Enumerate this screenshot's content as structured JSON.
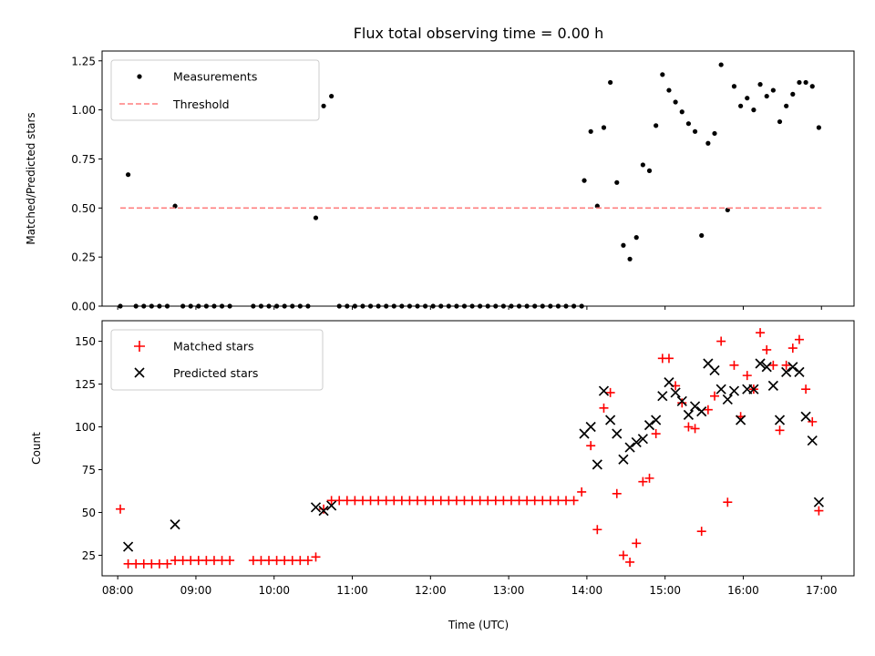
{
  "chart_data": [
    {
      "type": "scatter",
      "title": "Flux total observing time = 0.00 h",
      "xlabel": "",
      "ylabel": "Matched/Predicted stars",
      "xlim": [
        "07:48",
        "17:25"
      ],
      "ylim": [
        0,
        1.3
      ],
      "yticks": [
        "0.00",
        "0.25",
        "0.50",
        "0.75",
        "1.00",
        "1.25"
      ],
      "grid": false,
      "legend_position": "top-left",
      "series": [
        {
          "name": "Measurements",
          "marker": "dot",
          "color": "#000000",
          "points": [
            [
              "08:02",
              0
            ],
            [
              "08:08",
              0.67
            ],
            [
              "08:14",
              0
            ],
            [
              "08:20",
              0
            ],
            [
              "08:26",
              0
            ],
            [
              "08:32",
              0
            ],
            [
              "08:38",
              0
            ],
            [
              "08:44",
              0.51
            ],
            [
              "08:50",
              0
            ],
            [
              "08:56",
              0
            ],
            [
              "09:02",
              0
            ],
            [
              "09:08",
              0
            ],
            [
              "09:14",
              0
            ],
            [
              "09:20",
              0
            ],
            [
              "09:26",
              0
            ],
            [
              "09:44",
              0
            ],
            [
              "09:50",
              0
            ],
            [
              "09:56",
              0
            ],
            [
              "10:02",
              0
            ],
            [
              "10:08",
              0
            ],
            [
              "10:14",
              0
            ],
            [
              "10:20",
              0
            ],
            [
              "10:26",
              0
            ],
            [
              "10:32",
              0.45
            ],
            [
              "10:38",
              1.02
            ],
            [
              "10:44",
              1.07
            ],
            [
              "10:50",
              0
            ],
            [
              "10:56",
              0
            ],
            [
              "11:02",
              0
            ],
            [
              "11:08",
              0
            ],
            [
              "11:14",
              0
            ],
            [
              "11:20",
              0
            ],
            [
              "11:26",
              0
            ],
            [
              "11:32",
              0
            ],
            [
              "11:38",
              0
            ],
            [
              "11:44",
              0
            ],
            [
              "11:50",
              0
            ],
            [
              "11:56",
              0
            ],
            [
              "12:02",
              0
            ],
            [
              "12:08",
              0
            ],
            [
              "12:14",
              0
            ],
            [
              "12:20",
              0
            ],
            [
              "12:26",
              0
            ],
            [
              "12:32",
              0
            ],
            [
              "12:38",
              0
            ],
            [
              "12:44",
              0
            ],
            [
              "12:50",
              0
            ],
            [
              "12:56",
              0
            ],
            [
              "13:02",
              0
            ],
            [
              "13:08",
              0
            ],
            [
              "13:14",
              0
            ],
            [
              "13:20",
              0
            ],
            [
              "13:26",
              0
            ],
            [
              "13:32",
              0
            ],
            [
              "13:38",
              0
            ],
            [
              "13:44",
              0
            ],
            [
              "13:50",
              0
            ],
            [
              "13:56",
              0
            ],
            [
              "13:58",
              0.64
            ],
            [
              "14:03",
              0.89
            ],
            [
              "14:08",
              0.51
            ],
            [
              "14:13",
              0.91
            ],
            [
              "14:18",
              1.14
            ],
            [
              "14:23",
              0.63
            ],
            [
              "14:28",
              0.31
            ],
            [
              "14:33",
              0.24
            ],
            [
              "14:38",
              0.35
            ],
            [
              "14:43",
              0.72
            ],
            [
              "14:48",
              0.69
            ],
            [
              "14:53",
              0.92
            ],
            [
              "14:58",
              1.18
            ],
            [
              "15:03",
              1.1
            ],
            [
              "15:08",
              1.04
            ],
            [
              "15:13",
              0.99
            ],
            [
              "15:18",
              0.93
            ],
            [
              "15:23",
              0.89
            ],
            [
              "15:28",
              0.36
            ],
            [
              "15:33",
              0.83
            ],
            [
              "15:38",
              0.88
            ],
            [
              "15:43",
              1.23
            ],
            [
              "15:48",
              0.49
            ],
            [
              "15:53",
              1.12
            ],
            [
              "15:58",
              1.02
            ],
            [
              "16:03",
              1.06
            ],
            [
              "16:08",
              1.0
            ],
            [
              "16:13",
              1.13
            ],
            [
              "16:18",
              1.07
            ],
            [
              "16:23",
              1.1
            ],
            [
              "16:28",
              0.94
            ],
            [
              "16:33",
              1.02
            ],
            [
              "16:38",
              1.08
            ],
            [
              "16:43",
              1.14
            ],
            [
              "16:48",
              1.14
            ],
            [
              "16:53",
              1.12
            ],
            [
              "16:58",
              0.91
            ]
          ]
        },
        {
          "name": "Threshold",
          "marker": "dashed-line",
          "color": "#ff7f7f",
          "points": [
            [
              "08:02",
              0.5
            ],
            [
              "17:00",
              0.5
            ]
          ]
        }
      ]
    },
    {
      "type": "scatter",
      "title": "",
      "xlabel": "Time (UTC)",
      "ylabel": "Count",
      "xlim": [
        "07:48",
        "17:25"
      ],
      "ylim": [
        13,
        162
      ],
      "yticks": [
        "25",
        "50",
        "75",
        "100",
        "125",
        "150"
      ],
      "xticks": [
        "08:00",
        "09:00",
        "10:00",
        "11:00",
        "12:00",
        "13:00",
        "14:00",
        "15:00",
        "16:00",
        "17:00"
      ],
      "grid": false,
      "legend_position": "top-left",
      "series": [
        {
          "name": "Matched stars",
          "marker": "plus",
          "color": "#ff0000",
          "points": [
            [
              "08:02",
              52
            ],
            [
              "08:08",
              20
            ],
            [
              "08:14",
              20
            ],
            [
              "08:20",
              20
            ],
            [
              "08:26",
              20
            ],
            [
              "08:32",
              20
            ],
            [
              "08:38",
              20
            ],
            [
              "08:44",
              22
            ],
            [
              "08:50",
              22
            ],
            [
              "08:56",
              22
            ],
            [
              "09:02",
              22
            ],
            [
              "09:08",
              22
            ],
            [
              "09:14",
              22
            ],
            [
              "09:20",
              22
            ],
            [
              "09:26",
              22
            ],
            [
              "09:44",
              22
            ],
            [
              "09:50",
              22
            ],
            [
              "09:56",
              22
            ],
            [
              "10:02",
              22
            ],
            [
              "10:08",
              22
            ],
            [
              "10:14",
              22
            ],
            [
              "10:20",
              22
            ],
            [
              "10:26",
              22
            ],
            [
              "10:32",
              24
            ],
            [
              "10:38",
              52
            ],
            [
              "10:44",
              57
            ],
            [
              "10:50",
              57
            ],
            [
              "10:56",
              57
            ],
            [
              "11:02",
              57
            ],
            [
              "11:08",
              57
            ],
            [
              "11:14",
              57
            ],
            [
              "11:20",
              57
            ],
            [
              "11:26",
              57
            ],
            [
              "11:32",
              57
            ],
            [
              "11:38",
              57
            ],
            [
              "11:44",
              57
            ],
            [
              "11:50",
              57
            ],
            [
              "11:56",
              57
            ],
            [
              "12:02",
              57
            ],
            [
              "12:08",
              57
            ],
            [
              "12:14",
              57
            ],
            [
              "12:20",
              57
            ],
            [
              "12:26",
              57
            ],
            [
              "12:32",
              57
            ],
            [
              "12:38",
              57
            ],
            [
              "12:44",
              57
            ],
            [
              "12:50",
              57
            ],
            [
              "12:56",
              57
            ],
            [
              "13:02",
              57
            ],
            [
              "13:08",
              57
            ],
            [
              "13:14",
              57
            ],
            [
              "13:20",
              57
            ],
            [
              "13:26",
              57
            ],
            [
              "13:32",
              57
            ],
            [
              "13:38",
              57
            ],
            [
              "13:44",
              57
            ],
            [
              "13:50",
              57
            ],
            [
              "13:56",
              62
            ],
            [
              "14:03",
              89
            ],
            [
              "14:08",
              40
            ],
            [
              "14:13",
              111
            ],
            [
              "14:18",
              120
            ],
            [
              "14:23",
              61
            ],
            [
              "14:28",
              25
            ],
            [
              "14:33",
              21
            ],
            [
              "14:38",
              32
            ],
            [
              "14:43",
              68
            ],
            [
              "14:48",
              70
            ],
            [
              "14:53",
              96
            ],
            [
              "14:58",
              140
            ],
            [
              "15:03",
              140
            ],
            [
              "15:08",
              124
            ],
            [
              "15:13",
              114
            ],
            [
              "15:18",
              100
            ],
            [
              "15:23",
              99
            ],
            [
              "15:28",
              39
            ],
            [
              "15:33",
              110
            ],
            [
              "15:38",
              118
            ],
            [
              "15:43",
              150
            ],
            [
              "15:48",
              56
            ],
            [
              "15:53",
              136
            ],
            [
              "15:58",
              106
            ],
            [
              "16:03",
              130
            ],
            [
              "16:08",
              122
            ],
            [
              "16:13",
              155
            ],
            [
              "16:18",
              145
            ],
            [
              "16:23",
              136
            ],
            [
              "16:28",
              98
            ],
            [
              "16:33",
              136
            ],
            [
              "16:38",
              146
            ],
            [
              "16:43",
              151
            ],
            [
              "16:48",
              122
            ],
            [
              "16:53",
              103
            ],
            [
              "16:58",
              51
            ]
          ]
        },
        {
          "name": "Predicted stars",
          "marker": "x",
          "color": "#000000",
          "points": [
            [
              "08:08",
              30
            ],
            [
              "08:44",
              43
            ],
            [
              "10:32",
              53
            ],
            [
              "10:38",
              51
            ],
            [
              "10:44",
              54
            ],
            [
              "13:58",
              96
            ],
            [
              "14:03",
              100
            ],
            [
              "14:08",
              78
            ],
            [
              "14:13",
              121
            ],
            [
              "14:18",
              104
            ],
            [
              "14:23",
              96
            ],
            [
              "14:28",
              81
            ],
            [
              "14:33",
              88
            ],
            [
              "14:38",
              91
            ],
            [
              "14:43",
              93
            ],
            [
              "14:48",
              101
            ],
            [
              "14:53",
              104
            ],
            [
              "14:58",
              118
            ],
            [
              "15:03",
              126
            ],
            [
              "15:08",
              120
            ],
            [
              "15:13",
              115
            ],
            [
              "15:18",
              107
            ],
            [
              "15:23",
              112
            ],
            [
              "15:28",
              109
            ],
            [
              "15:33",
              137
            ],
            [
              "15:38",
              133
            ],
            [
              "15:43",
              122
            ],
            [
              "15:48",
              116
            ],
            [
              "15:53",
              121
            ],
            [
              "15:58",
              104
            ],
            [
              "16:03",
              122
            ],
            [
              "16:08",
              122
            ],
            [
              "16:13",
              137
            ],
            [
              "16:18",
              135
            ],
            [
              "16:23",
              124
            ],
            [
              "16:28",
              104
            ],
            [
              "16:33",
              132
            ],
            [
              "16:38",
              135
            ],
            [
              "16:43",
              132
            ],
            [
              "16:48",
              106
            ],
            [
              "16:53",
              92
            ],
            [
              "16:58",
              56
            ]
          ]
        }
      ]
    }
  ]
}
